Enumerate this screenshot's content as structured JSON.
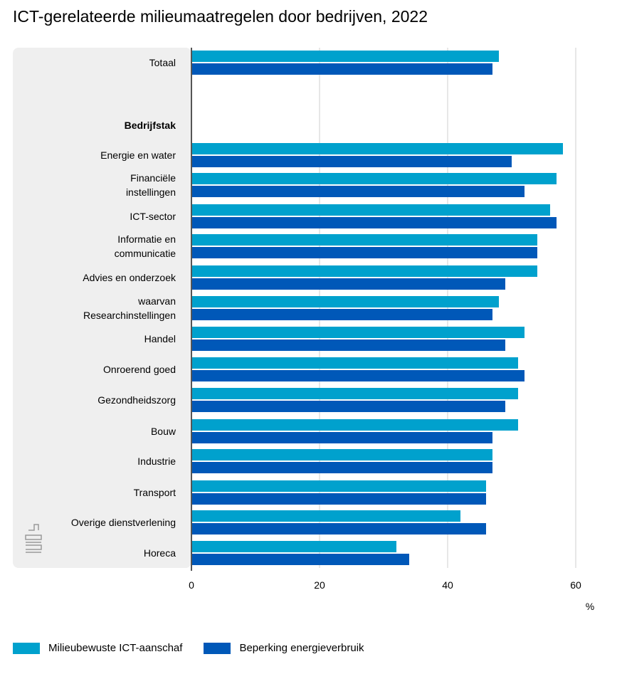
{
  "title": "ICT-gerelateerde milieumaatregelen door bedrijven, 2022",
  "colors": {
    "series1": "#00a1cd",
    "series2": "#0058b8",
    "panel": "#efefef",
    "grid": "#cfcfcf",
    "axis": "#555555"
  },
  "chart_data": {
    "type": "bar",
    "orientation": "horizontal",
    "title": "ICT-gerelateerde milieumaatregelen door bedrijven, 2022",
    "xlabel": "%",
    "xlim": [
      0,
      60
    ],
    "xticks": [
      0,
      20,
      40,
      60
    ],
    "grid": true,
    "legend_position": "bottom-left",
    "section_header": "Bedrijfstak",
    "categories": [
      "Totaal",
      "Energie en water",
      "Financiële instellingen",
      "ICT-sector",
      "Informatie en communicatie",
      "Advies en onderzoek",
      "waarvan Researchinstellingen",
      "Handel",
      "Onroerend goed",
      "Gezondheidszorg",
      "Bouw",
      "Industrie",
      "Transport",
      "Overige dienstverlening",
      "Horeca"
    ],
    "category_lines": [
      [
        "Totaal"
      ],
      [
        "Energie en water"
      ],
      [
        "Financiële",
        "instellingen"
      ],
      [
        "ICT-sector"
      ],
      [
        "Informatie en",
        "communicatie"
      ],
      [
        "Advies en onderzoek"
      ],
      [
        "waarvan",
        "Researchinstellingen"
      ],
      [
        "Handel"
      ],
      [
        "Onroerend goed"
      ],
      [
        "Gezondheidszorg"
      ],
      [
        "Bouw"
      ],
      [
        "Industrie"
      ],
      [
        "Transport"
      ],
      [
        "Overige dienstverlening"
      ],
      [
        "Horeca"
      ]
    ],
    "series": [
      {
        "name": "Milieubewuste ICT-aanschaf",
        "values": [
          48,
          58,
          57,
          56,
          54,
          54,
          48,
          52,
          51,
          51,
          51,
          47,
          46,
          42,
          32
        ]
      },
      {
        "name": "Beperking energieverbruik",
        "values": [
          47,
          50,
          52,
          57,
          54,
          49,
          47,
          49,
          52,
          49,
          47,
          47,
          46,
          46,
          34
        ]
      }
    ]
  }
}
